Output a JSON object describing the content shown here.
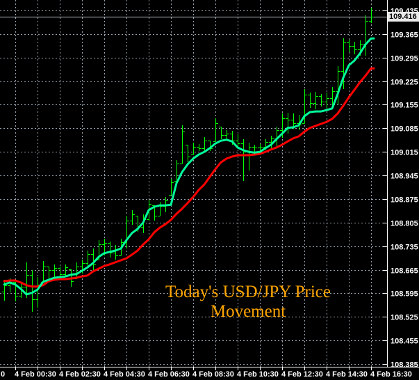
{
  "window": {
    "background": "#000000"
  },
  "colors": {
    "grid": "#98a2ac",
    "axis_line": "#ffffff",
    "axis_text": "#ffffff",
    "bar": "#00ff00",
    "fast_ma": "#00fa9a",
    "slow_ma": "#ff0000",
    "current_price_line": "#b8c4ce",
    "current_price_tag_bg": "#e9e9e9",
    "current_price_tag_text": "#000000",
    "annotation": "#ffa500"
  },
  "price_axis": {
    "labels": [
      "109.435",
      "109.365",
      "109.295",
      "109.225",
      "109.155",
      "109.085",
      "109.015",
      "108.945",
      "108.875",
      "108.805",
      "108.735",
      "108.665",
      "108.595",
      "108.525",
      "108.455",
      "108.385"
    ],
    "current_price": "109.416"
  },
  "time_axis": {
    "partial_left_label": "0",
    "labels": [
      "4 Feb 00:30",
      "4 Feb 02:30",
      "4 Feb 04:30",
      "4 Feb 06:30",
      "4 Feb 08:30",
      "4 Feb 10:30",
      "4 Feb 12:30",
      "4 Feb 14:30",
      "4 Feb 16:30"
    ]
  },
  "annotation": {
    "lines": [
      "Today's USD/JPY Price",
      "Movement"
    ]
  },
  "chart_data": {
    "type": "ohlc-bars",
    "title": "Today's USD/JPY Price Movement",
    "symbol": "USD/JPY",
    "bar_interval": "15m",
    "xlabel": "",
    "ylabel": "",
    "ylim": [
      108.385,
      109.435
    ],
    "grid": true,
    "current_price": 109.416,
    "bar_columns": [
      "time",
      "open",
      "high",
      "low",
      "close"
    ],
    "bars": [
      [
        "00:00",
        108.6,
        108.635,
        108.573,
        108.619
      ],
      [
        "00:15",
        108.619,
        108.639,
        108.598,
        108.629
      ],
      [
        "00:30",
        108.629,
        108.629,
        108.571,
        108.588
      ],
      [
        "00:45",
        108.588,
        108.625,
        108.581,
        108.614
      ],
      [
        "01:00",
        108.614,
        108.687,
        108.581,
        108.65
      ],
      [
        "01:15",
        108.65,
        108.664,
        108.54,
        108.577
      ],
      [
        "01:30",
        108.577,
        108.643,
        108.552,
        108.62
      ],
      [
        "01:45",
        108.629,
        108.691,
        108.629,
        108.675
      ],
      [
        "02:00",
        108.674,
        108.674,
        108.639,
        108.665
      ],
      [
        "02:15",
        108.665,
        108.681,
        108.639,
        108.67
      ],
      [
        "02:30",
        108.67,
        108.674,
        108.643,
        108.651
      ],
      [
        "02:45",
        108.651,
        108.681,
        108.645,
        108.672
      ],
      [
        "03:00",
        108.666,
        108.666,
        108.614,
        108.63
      ],
      [
        "03:15",
        108.639,
        108.687,
        108.639,
        108.675
      ],
      [
        "03:30",
        108.675,
        108.695,
        108.654,
        108.685
      ],
      [
        "03:45",
        108.685,
        108.722,
        108.674,
        108.712
      ],
      [
        "04:00",
        108.712,
        108.728,
        108.66,
        108.68
      ],
      [
        "04:15",
        108.695,
        108.753,
        108.695,
        108.74
      ],
      [
        "04:30",
        108.74,
        108.757,
        108.707,
        108.745
      ],
      [
        "04:45",
        108.745,
        108.749,
        108.701,
        108.715
      ],
      [
        "05:00",
        108.715,
        108.738,
        108.695,
        108.708
      ],
      [
        "05:15",
        108.708,
        108.757,
        108.707,
        108.747
      ],
      [
        "05:30",
        108.747,
        108.825,
        108.728,
        108.81
      ],
      [
        "05:45",
        108.81,
        108.842,
        108.798,
        108.83
      ],
      [
        "06:00",
        108.825,
        108.825,
        108.778,
        108.792
      ],
      [
        "06:15",
        108.792,
        108.829,
        108.774,
        108.815
      ],
      [
        "06:30",
        108.815,
        108.873,
        108.811,
        108.86
      ],
      [
        "06:45",
        108.856,
        108.856,
        108.811,
        108.825
      ],
      [
        "07:00",
        108.825,
        108.867,
        108.825,
        108.855
      ],
      [
        "07:15",
        108.855,
        108.881,
        108.836,
        108.87
      ],
      [
        "07:30",
        108.887,
        108.935,
        108.887,
        108.925
      ],
      [
        "07:45",
        108.929,
        108.991,
        108.929,
        108.98
      ],
      [
        "08:00",
        108.98,
        109.094,
        108.98,
        109.075
      ],
      [
        "08:15",
        109.036,
        109.036,
        108.984,
        109.0
      ],
      [
        "08:30",
        109.007,
        109.042,
        109.007,
        109.03
      ],
      [
        "08:45",
        109.03,
        109.038,
        109.017,
        109.025
      ],
      [
        "09:00",
        109.025,
        109.059,
        109.017,
        109.048
      ],
      [
        "09:15",
        109.048,
        109.048,
        109.017,
        109.025
      ],
      [
        "09:30",
        109.046,
        109.115,
        109.046,
        109.1
      ],
      [
        "09:45",
        109.09,
        109.09,
        109.053,
        109.065
      ],
      [
        "10:00",
        109.065,
        109.079,
        109.048,
        109.07
      ],
      [
        "10:15",
        109.07,
        109.077,
        109.036,
        109.048
      ],
      [
        "10:30",
        109.048,
        109.067,
        109.028,
        109.04
      ],
      [
        "10:45",
        109.04,
        109.053,
        108.929,
        109.016
      ],
      [
        "11:00",
        109.016,
        109.042,
        108.96,
        109.03
      ],
      [
        "11:15",
        109.03,
        109.036,
        109.005,
        109.028
      ],
      [
        "11:30",
        109.028,
        109.038,
        109.007,
        109.03
      ],
      [
        "11:45",
        109.03,
        109.053,
        109.022,
        109.045
      ],
      [
        "12:00",
        109.045,
        109.063,
        109.026,
        109.055
      ],
      [
        "12:15",
        109.055,
        109.09,
        109.032,
        109.08
      ],
      [
        "12:30",
        109.08,
        109.129,
        109.057,
        109.115
      ],
      [
        "12:45",
        109.115,
        109.131,
        109.069,
        109.11
      ],
      [
        "13:00",
        109.11,
        109.129,
        109.084,
        109.1
      ],
      [
        "13:15",
        109.1,
        109.125,
        109.079,
        109.095
      ],
      [
        "13:30",
        109.1,
        109.201,
        109.1,
        109.185
      ],
      [
        "13:45",
        109.185,
        109.191,
        109.146,
        109.16
      ],
      [
        "14:00",
        109.16,
        109.193,
        109.141,
        109.18
      ],
      [
        "14:15",
        109.18,
        109.187,
        109.15,
        109.165
      ],
      [
        "14:30",
        109.165,
        109.191,
        109.146,
        109.175
      ],
      [
        "14:45",
        109.175,
        109.208,
        109.15,
        109.195
      ],
      [
        "15:00",
        109.195,
        109.27,
        109.156,
        109.255
      ],
      [
        "15:15",
        109.255,
        109.352,
        109.201,
        109.34
      ],
      [
        "15:30",
        109.34,
        109.348,
        109.311,
        109.33
      ],
      [
        "15:45",
        109.33,
        109.342,
        109.305,
        109.32
      ],
      [
        "16:00",
        109.32,
        109.346,
        109.301,
        109.335
      ],
      [
        "16:15",
        109.335,
        109.421,
        109.301,
        109.405
      ],
      [
        "16:30",
        109.405,
        109.443,
        109.398,
        109.416
      ]
    ],
    "series": [
      {
        "name": "fast-ma",
        "color": "#00fa9a",
        "values": [
          108.621,
          108.627,
          108.621,
          108.608,
          108.592,
          108.596,
          108.606,
          108.629,
          108.635,
          108.641,
          108.643,
          108.645,
          108.65,
          108.652,
          108.662,
          108.672,
          108.685,
          108.703,
          108.714,
          108.718,
          108.722,
          108.728,
          108.753,
          108.774,
          108.786,
          108.805,
          108.842,
          108.852,
          108.856,
          108.856,
          108.858,
          108.922,
          108.955,
          108.978,
          108.995,
          109.007,
          109.015,
          109.026,
          109.04,
          109.048,
          109.051,
          109.046,
          109.028,
          109.02,
          109.015,
          109.013,
          109.015,
          109.026,
          109.036,
          109.053,
          109.069,
          109.086,
          109.088,
          109.094,
          109.121,
          109.133,
          109.135,
          109.135,
          109.139,
          109.144,
          109.187,
          109.235,
          109.272,
          109.286,
          109.307,
          109.334,
          109.352
        ]
      },
      {
        "name": "slow-ma",
        "color": "#ff0000",
        "values": [
          108.631,
          108.633,
          108.633,
          108.627,
          108.619,
          108.615,
          108.615,
          108.619,
          108.631,
          108.635,
          108.637,
          108.637,
          108.639,
          108.641,
          108.645,
          108.648,
          108.66,
          108.668,
          108.676,
          108.681,
          108.687,
          108.693,
          108.699,
          108.71,
          108.722,
          108.74,
          108.755,
          108.776,
          108.79,
          108.8,
          108.813,
          108.831,
          108.846,
          108.863,
          108.881,
          108.902,
          108.918,
          108.941,
          108.964,
          108.984,
          108.995,
          109.001,
          109.005,
          109.005,
          109.005,
          109.007,
          109.009,
          109.015,
          109.022,
          109.028,
          109.036,
          109.046,
          109.055,
          109.061,
          109.075,
          109.086,
          109.092,
          109.098,
          109.104,
          109.113,
          109.129,
          109.152,
          109.177,
          109.199,
          109.222,
          109.241,
          109.263
        ]
      }
    ]
  }
}
